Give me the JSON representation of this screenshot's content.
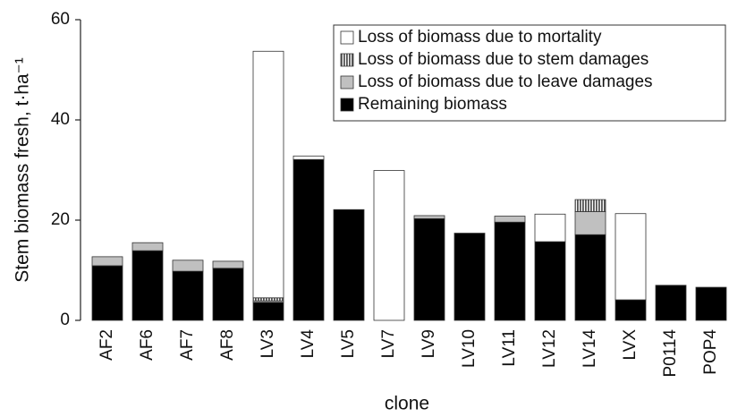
{
  "chart_data": {
    "type": "stacked_bar",
    "y_label": "Stem biomass fresh, t·ha⁻¹",
    "x_label": "clone",
    "categories": [
      "AF2",
      "AF6",
      "AF7",
      "AF8",
      "LV3",
      "LV4",
      "LV5",
      "LV7",
      "LV9",
      "LV10",
      "LV11",
      "LV12",
      "LV14",
      "LVX",
      "P0114",
      "POP4"
    ],
    "series": [
      {
        "name": "Remaining biomass",
        "color": "#000000",
        "values": [
          10.9,
          13.9,
          9.8,
          10.4,
          3.6,
          32.1,
          22.1,
          0,
          20.3,
          17.4,
          19.6,
          15.7,
          17.1,
          4.1,
          7.0,
          6.6
        ]
      },
      {
        "name": "Loss of biomass due to leave damages",
        "color": "#c0c0c0",
        "values": [
          1.8,
          1.6,
          2.2,
          1.4,
          0.3,
          0,
          0,
          0,
          0.6,
          0,
          1.2,
          0,
          4.6,
          0,
          0,
          0
        ]
      },
      {
        "name": "Loss of biomass due to stem damages",
        "color": "#555555",
        "pattern": "vertical-stripes",
        "values": [
          0,
          0,
          0,
          0,
          0.6,
          0,
          0,
          0,
          0,
          0,
          0,
          0,
          2.4,
          0,
          0,
          0
        ]
      },
      {
        "name": "Loss of biomass due to mortality",
        "color": "#ffffff",
        "values": [
          0,
          0,
          0,
          0,
          49.2,
          0.7,
          0,
          29.9,
          0,
          0,
          0,
          5.5,
          0,
          17.2,
          0,
          0
        ]
      }
    ],
    "ylim": [
      0,
      60
    ],
    "yticks": [
      0,
      20,
      40,
      60
    ],
    "grid": false,
    "legend": "top-right"
  }
}
